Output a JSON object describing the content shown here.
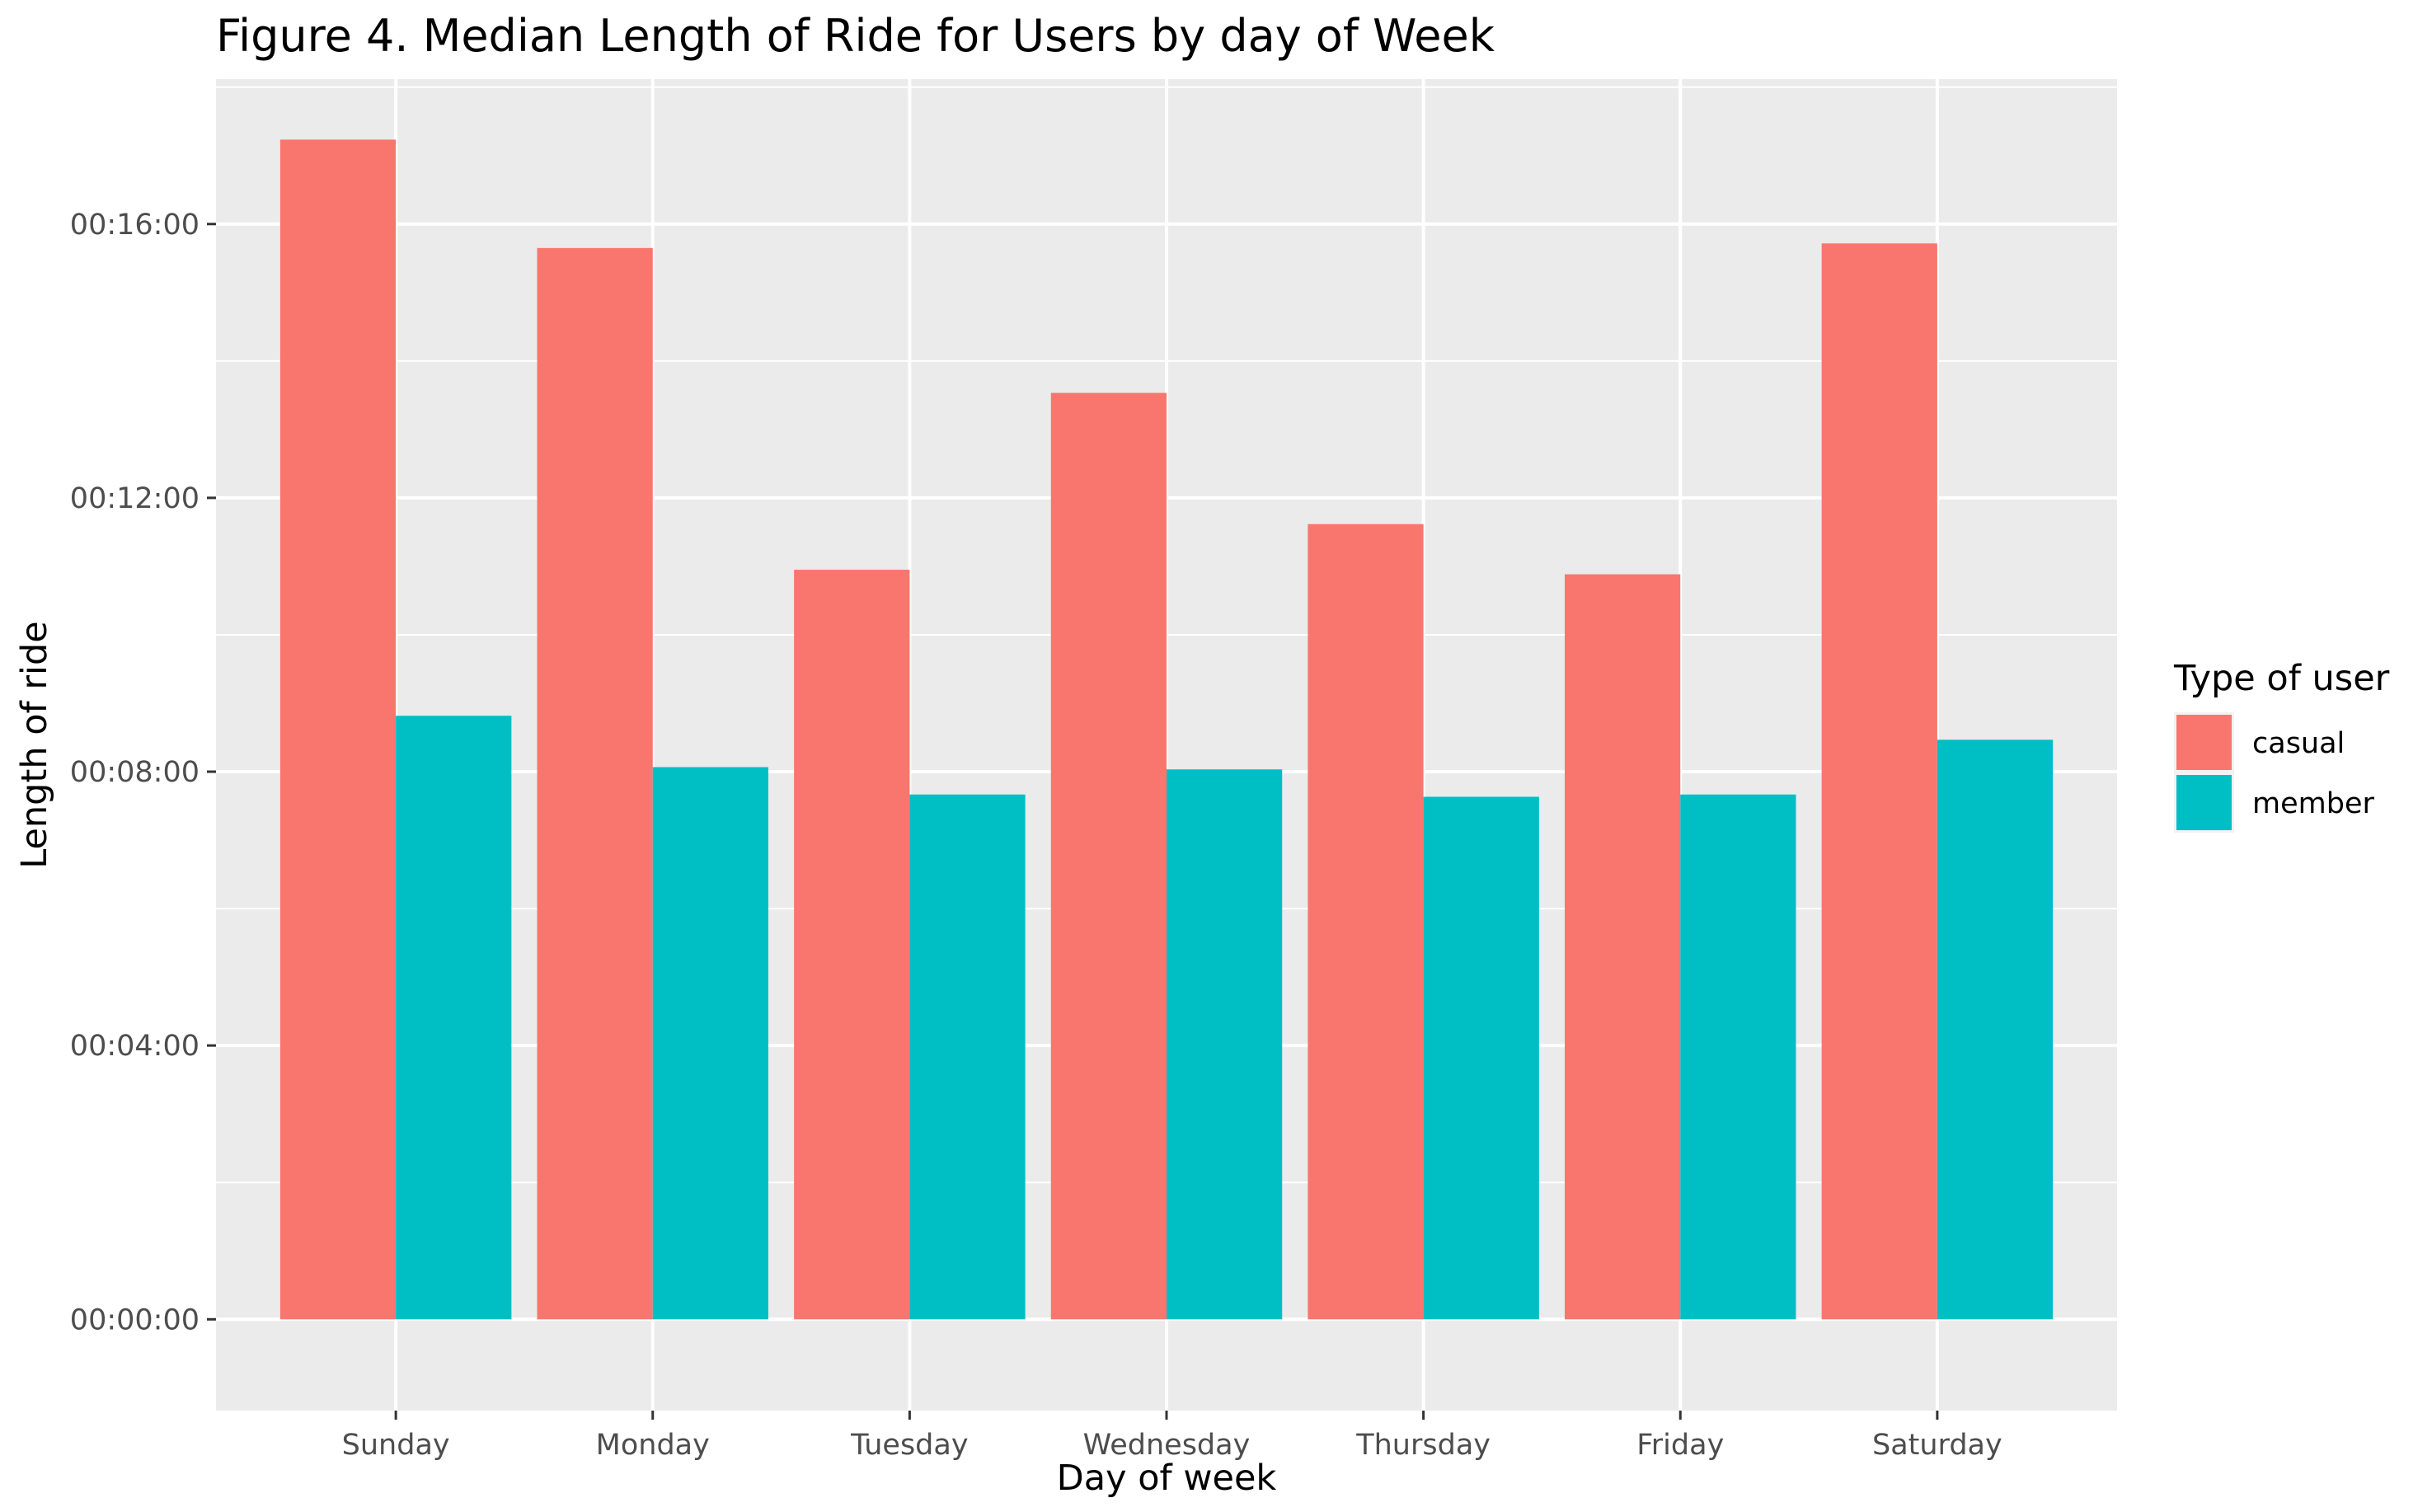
{
  "chart_data": {
    "type": "bar",
    "title": "Figure 4. Median Length of Ride for Users by day of Week",
    "xlabel": "Day of week",
    "ylabel": "Length of ride",
    "categories": [
      "Sunday",
      "Monday",
      "Tuesday",
      "Wednesday",
      "Thursday",
      "Friday",
      "Saturday"
    ],
    "y_unit": "seconds",
    "y_ticks": [
      0,
      240,
      480,
      720,
      960
    ],
    "y_tick_labels": [
      "00:00:00",
      "00:04:00",
      "00:08:00",
      "00:12:00",
      "00:16:00"
    ],
    "ylim": [
      -80,
      1087
    ],
    "grid": true,
    "legend": {
      "title": "Type of user",
      "position": "right"
    },
    "series": [
      {
        "name": "casual",
        "color": "#F8766D",
        "values": [
          1034,
          939,
          657,
          812,
          697,
          653,
          943
        ]
      },
      {
        "name": "member",
        "color": "#00BFC4",
        "values": [
          529,
          484,
          460,
          482,
          458,
          460,
          508
        ]
      }
    ]
  }
}
